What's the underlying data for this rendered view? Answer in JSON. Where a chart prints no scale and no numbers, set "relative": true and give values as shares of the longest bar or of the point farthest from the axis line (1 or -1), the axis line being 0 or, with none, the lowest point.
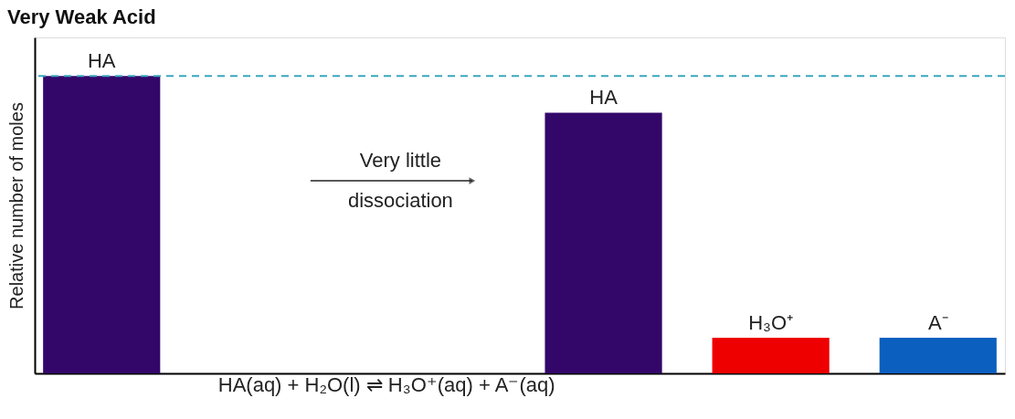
{
  "chart_data": {
    "type": "bar",
    "title": "Very Weak Acid",
    "ylabel": "Relative number of moles",
    "categories": [
      "HA",
      null,
      null,
      "HA",
      "H₃O⁺",
      "A⁻"
    ],
    "values": [
      1,
      null,
      null,
      0.877,
      0.12,
      0.12
    ],
    "colors": [
      "#33076a",
      "#33076a",
      "#33076a",
      "#33076a",
      "#ee0000",
      "#0b5fbf"
    ],
    "relative": true,
    "ref_lines": [
      {
        "axis": "y",
        "value": 1,
        "color": "#3aa6c0",
        "line_style": "dashed"
      }
    ],
    "annotations": [
      "Very little\ndissociation",
      "HA(aq) + H₂O(l) ⇌ H₃O⁺(aq) + A⁻(aq)"
    ]
  }
}
